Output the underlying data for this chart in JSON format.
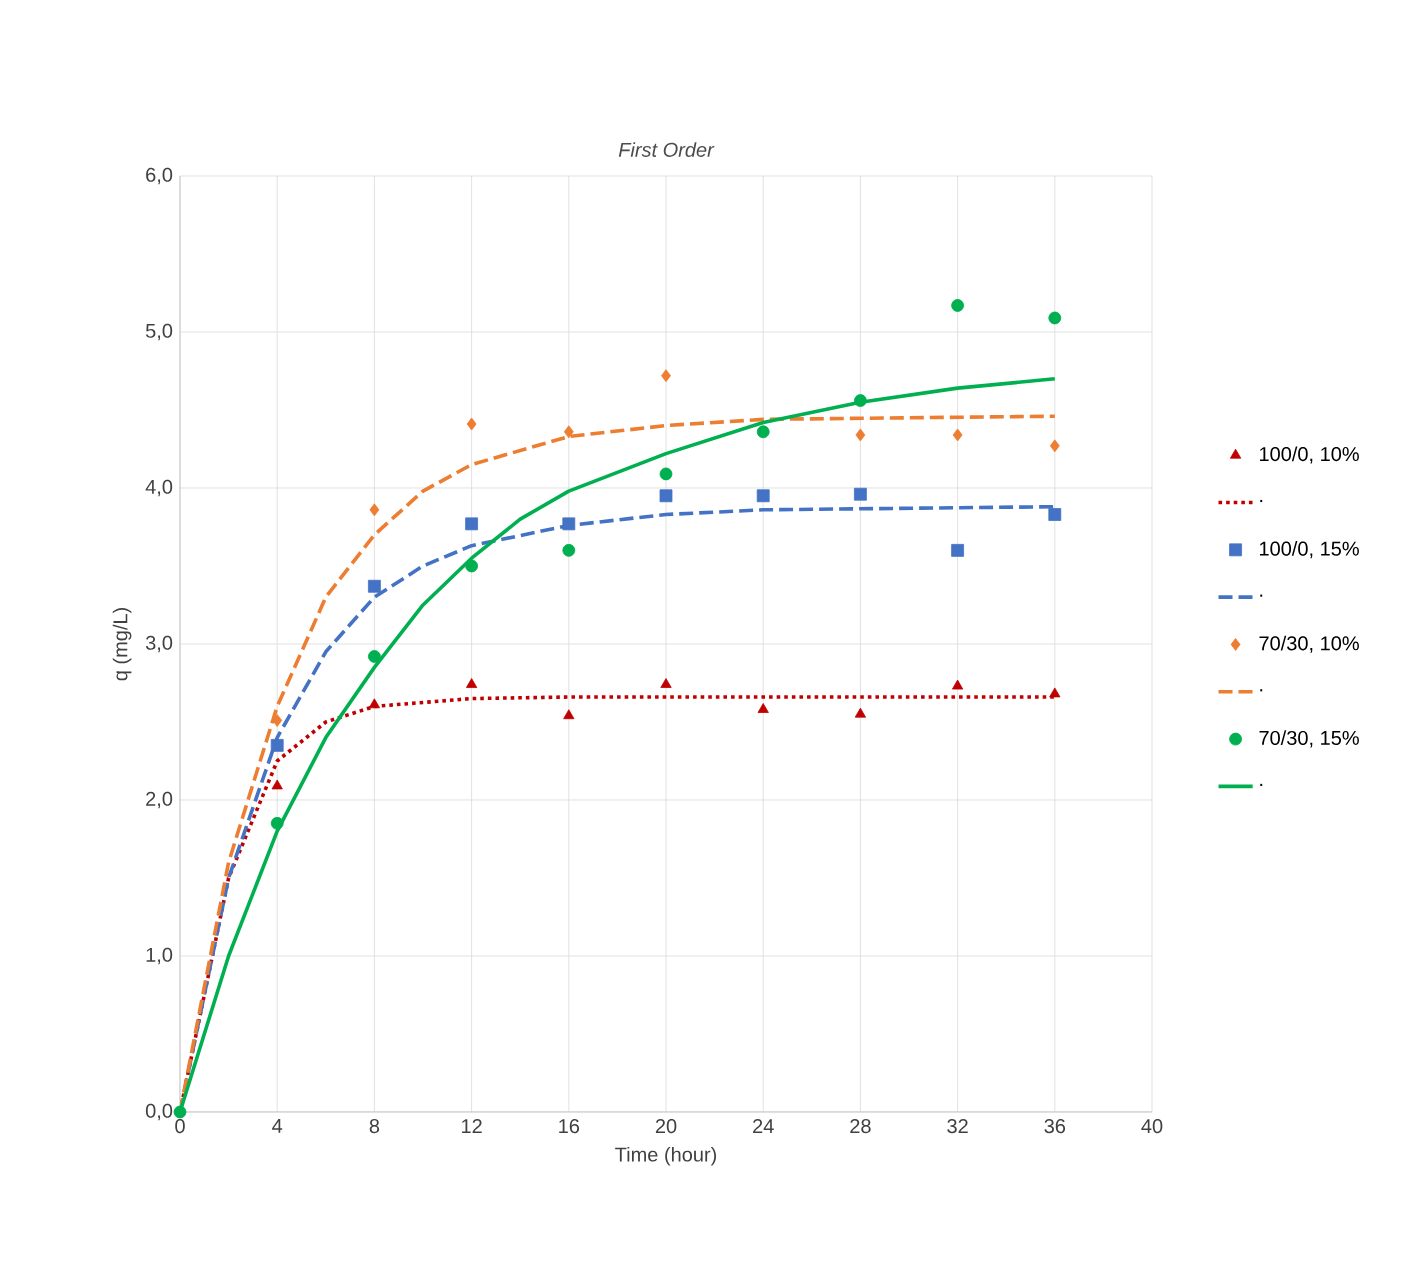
{
  "chart_data": {
    "type": "scatter",
    "title": "First Order",
    "xlabel": "Time (hour)",
    "ylabel": "q (mg/L)",
    "xlim": [
      0,
      40
    ],
    "xticks": [
      0,
      4,
      8,
      12,
      16,
      20,
      24,
      28,
      32,
      36,
      40
    ],
    "ylim": [
      0,
      6
    ],
    "yticks": [
      {
        "value": 0,
        "label": "0,0"
      },
      {
        "value": 1,
        "label": "1,0"
      },
      {
        "value": 2,
        "label": "2,0"
      },
      {
        "value": 3,
        "label": "3,0"
      },
      {
        "value": 4,
        "label": "4,0"
      },
      {
        "value": 5,
        "label": "5,0"
      },
      {
        "value": 6,
        "label": "6,0"
      }
    ],
    "grid": true,
    "legend": "right",
    "series": [
      {
        "name": "100/0, 10%",
        "marker": "triangle",
        "color": "#c00000",
        "x": [
          4,
          8,
          12,
          16,
          20,
          24,
          28,
          32,
          36
        ],
        "values": [
          2.09,
          2.61,
          2.74,
          2.54,
          2.74,
          2.58,
          2.55,
          2.73,
          2.68
        ]
      },
      {
        "name": ".",
        "type": "line",
        "line_style": "dotted",
        "color": "#c00000",
        "x": [
          0,
          2,
          4,
          6,
          8,
          12,
          16,
          36
        ],
        "values": [
          0,
          1.5,
          2.25,
          2.5,
          2.6,
          2.65,
          2.66,
          2.66
        ]
      },
      {
        "name": "100/0, 15%",
        "marker": "square",
        "color": "#4472c4",
        "x": [
          4,
          8,
          12,
          16,
          20,
          24,
          28,
          32,
          36
        ],
        "values": [
          2.35,
          3.37,
          3.77,
          3.77,
          3.95,
          3.95,
          3.96,
          3.6,
          3.83
        ]
      },
      {
        "name": ".",
        "type": "line",
        "line_style": "dashed",
        "color": "#4472c4",
        "x": [
          0,
          2,
          4,
          6,
          8,
          10,
          12,
          16,
          20,
          24,
          36
        ],
        "values": [
          0,
          1.5,
          2.4,
          2.95,
          3.3,
          3.5,
          3.63,
          3.76,
          3.83,
          3.86,
          3.88
        ]
      },
      {
        "name": "70/30, 10%",
        "marker": "diamond",
        "color": "#ed7d31",
        "x": [
          4,
          8,
          12,
          16,
          20,
          24,
          28,
          32,
          36
        ],
        "values": [
          2.51,
          3.86,
          4.41,
          4.36,
          4.72,
          null,
          4.34,
          4.34,
          4.27
        ]
      },
      {
        "name": ".",
        "type": "line",
        "line_style": "dashed",
        "color": "#ed7d31",
        "x": [
          0,
          2,
          4,
          6,
          8,
          10,
          12,
          16,
          20,
          24,
          36
        ],
        "values": [
          0,
          1.6,
          2.6,
          3.3,
          3.7,
          3.98,
          4.15,
          4.33,
          4.4,
          4.44,
          4.46
        ]
      },
      {
        "name": "70/30, 15%",
        "marker": "circle",
        "color": "#00b050",
        "x": [
          0,
          4,
          8,
          12,
          16,
          20,
          24,
          28,
          32,
          36
        ],
        "values": [
          0,
          1.85,
          2.92,
          3.5,
          3.6,
          4.09,
          4.36,
          4.56,
          5.17,
          5.09
        ]
      },
      {
        "name": ".",
        "type": "line",
        "line_style": "solid",
        "color": "#00b050",
        "x": [
          0,
          2,
          4,
          6,
          8,
          10,
          12,
          14,
          16,
          20,
          24,
          28,
          32,
          36
        ],
        "values": [
          0,
          1.0,
          1.8,
          2.4,
          2.85,
          3.25,
          3.55,
          3.8,
          3.98,
          4.22,
          4.42,
          4.55,
          4.64,
          4.7
        ]
      }
    ]
  }
}
